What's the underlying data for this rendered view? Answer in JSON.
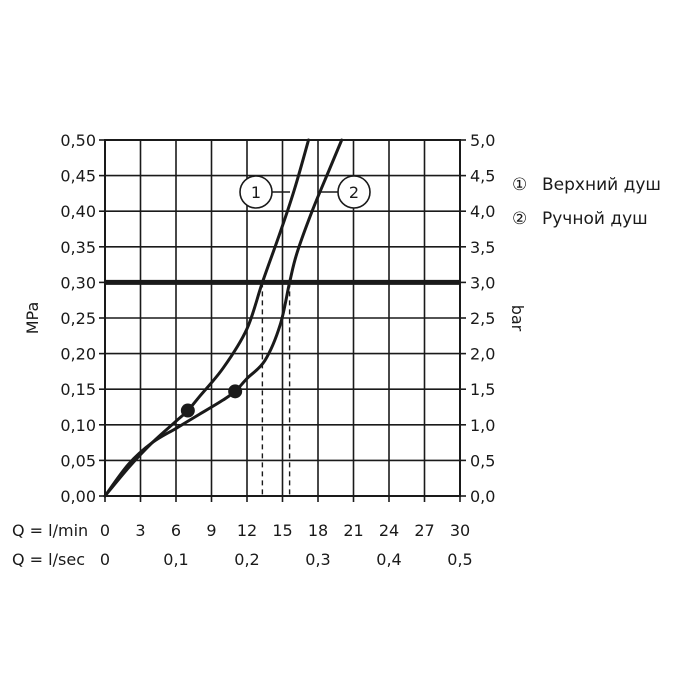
{
  "chart_data": {
    "type": "line",
    "ylabel_left": "MPa",
    "ylabel_right": "bar",
    "ylim": [
      0,
      0.5
    ],
    "yticks_left": [
      "0,00",
      "0,05",
      "0,10",
      "0,15",
      "0,20",
      "0,25",
      "0,30",
      "0,35",
      "0,40",
      "0,45",
      "0,50"
    ],
    "yticks_right": [
      "0,0",
      "0,5",
      "1,0",
      "1,5",
      "2,0",
      "2,5",
      "3,0",
      "3,5",
      "4,0",
      "4,5",
      "5,0"
    ],
    "x_row1": {
      "label": "Q = l/min",
      "ticks": [
        "0",
        "3",
        "6",
        "9",
        "12",
        "15",
        "18",
        "21",
        "24",
        "27",
        "30"
      ],
      "values": [
        0,
        3,
        6,
        9,
        12,
        15,
        18,
        21,
        24,
        27,
        30
      ]
    },
    "x_row2": {
      "label": "Q = l/sec",
      "ticks": [
        "0",
        "0,1",
        "0,2",
        "0,3",
        "0,4",
        "0,5"
      ],
      "values": [
        0,
        6,
        12,
        18,
        24,
        30
      ]
    },
    "xlim": [
      0,
      30
    ],
    "grid": true,
    "reference_line": {
      "y": 0.3
    },
    "series": [
      {
        "name": "Верхний душ",
        "marker": "①",
        "x": [
          0,
          2,
          4,
          6,
          7,
          8,
          10,
          12,
          13.3,
          14.8,
          16,
          17.2
        ],
        "y": [
          0,
          0.04,
          0.075,
          0.105,
          0.12,
          0.14,
          0.18,
          0.235,
          0.3,
          0.37,
          0.43,
          0.5
        ],
        "highlight": {
          "x": 7,
          "y": 0.12
        },
        "intersection_x": 13.3
      },
      {
        "name": "Ручной душ",
        "marker": "②",
        "x": [
          0,
          2,
          4,
          6,
          8,
          10,
          11,
          12,
          13.5,
          14.8,
          15.6,
          16.2,
          17.5,
          19,
          20
        ],
        "y": [
          0,
          0.045,
          0.075,
          0.095,
          0.115,
          0.135,
          0.147,
          0.165,
          0.19,
          0.24,
          0.3,
          0.34,
          0.4,
          0.46,
          0.5
        ],
        "highlight": {
          "x": 11,
          "y": 0.147
        },
        "intersection_x": 15.6
      }
    ],
    "legend": {
      "position": "right",
      "items": [
        {
          "symbol": "①",
          "text": "Верхний душ"
        },
        {
          "symbol": "②",
          "text": "Ручной душ"
        }
      ]
    },
    "callouts": [
      {
        "text": "1"
      },
      {
        "text": "2"
      }
    ]
  }
}
